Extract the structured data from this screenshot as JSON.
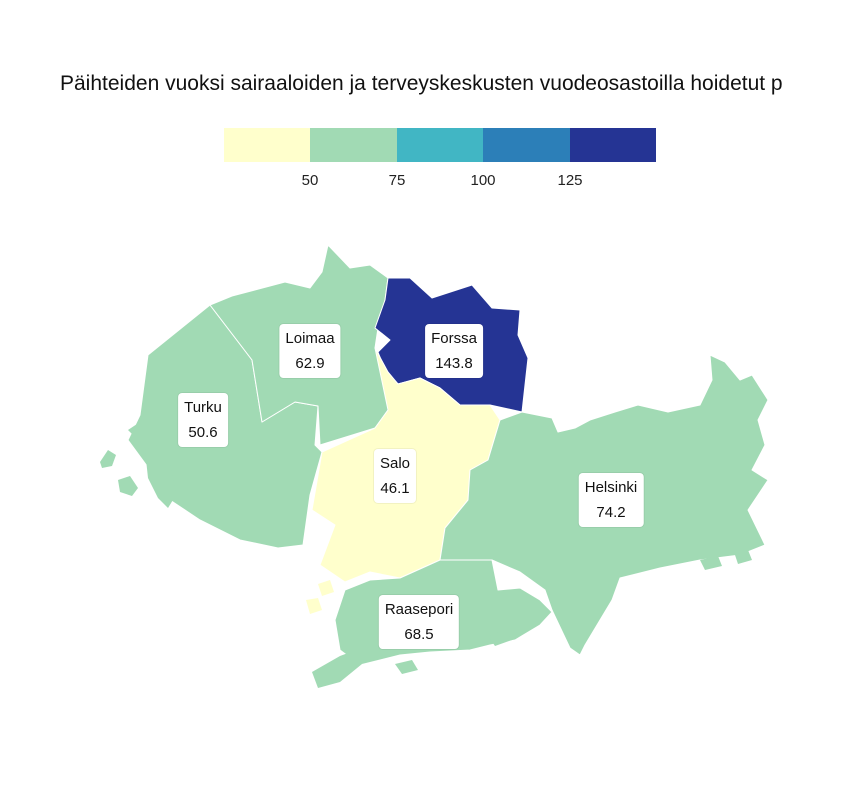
{
  "title": "Päihteiden vuoksi sairaaloiden ja terveyskeskusten vuodeosastoilla hoidetut p",
  "legend": {
    "colors": [
      "#ffffcc",
      "#a1dab4",
      "#41b6c4",
      "#2c7fb8",
      "#253494"
    ],
    "ticks": [
      "50",
      "75",
      "100",
      "125"
    ]
  },
  "regions": [
    {
      "name": "Loimaa",
      "value": "62.9"
    },
    {
      "name": "Forssa",
      "value": "143.8"
    },
    {
      "name": "Turku",
      "value": "50.6"
    },
    {
      "name": "Salo",
      "value": "46.1"
    },
    {
      "name": "Helsinki",
      "value": "74.2"
    },
    {
      "name": "Raasepori",
      "value": "68.5"
    }
  ]
}
